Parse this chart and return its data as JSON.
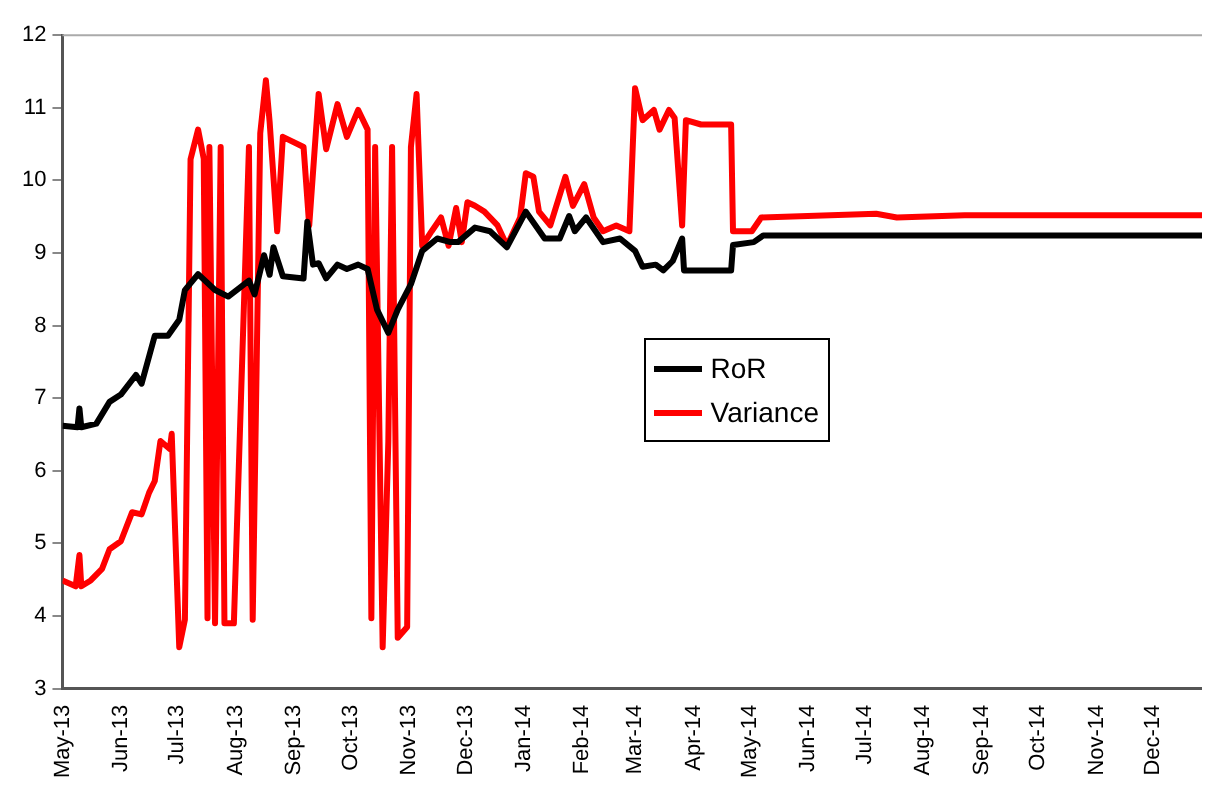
{
  "chart_data": {
    "type": "line",
    "ylim": [
      3,
      12
    ],
    "yticks": [
      3,
      4,
      5,
      6,
      7,
      8,
      9,
      10,
      11,
      12
    ],
    "xlim": [
      "2013-05-01",
      "2014-12-27"
    ],
    "xticks": [
      {
        "value": "2013-05-01",
        "label": "May-13"
      },
      {
        "value": "2013-06-01",
        "label": "Jun-13"
      },
      {
        "value": "2013-07-01",
        "label": "Jul-13"
      },
      {
        "value": "2013-08-01",
        "label": "Aug-13"
      },
      {
        "value": "2013-09-01",
        "label": "Sep-13"
      },
      {
        "value": "2013-10-01",
        "label": "Oct-13"
      },
      {
        "value": "2013-11-01",
        "label": "Nov-13"
      },
      {
        "value": "2013-12-01",
        "label": "Dec-13"
      },
      {
        "value": "2014-01-01",
        "label": "Jan-14"
      },
      {
        "value": "2014-02-01",
        "label": "Feb-14"
      },
      {
        "value": "2014-03-01",
        "label": "Mar-14"
      },
      {
        "value": "2014-04-01",
        "label": "Apr-14"
      },
      {
        "value": "2014-05-01",
        "label": "May-14"
      },
      {
        "value": "2014-06-01",
        "label": "Jun-14"
      },
      {
        "value": "2014-07-01",
        "label": "Jul-14"
      },
      {
        "value": "2014-08-01",
        "label": "Aug-14"
      },
      {
        "value": "2014-09-01",
        "label": "Sep-14"
      },
      {
        "value": "2014-10-01",
        "label": "Oct-14"
      },
      {
        "value": "2014-11-01",
        "label": "Nov-14"
      },
      {
        "value": "2014-12-01",
        "label": "Dec-14"
      }
    ],
    "grid": false,
    "legend": "center",
    "marker": "none",
    "line_style": "solid",
    "series": [
      {
        "name": "RoR",
        "color": "#000000",
        "x": [
          "2013-05-01",
          "2013-05-09",
          "2013-05-10",
          "2013-05-11",
          "2013-05-19",
          "2013-05-26",
          "2013-06-01",
          "2013-06-09",
          "2013-06-12",
          "2013-06-19",
          "2013-06-26",
          "2013-07-02",
          "2013-07-05",
          "2013-07-12",
          "2013-07-21",
          "2013-07-28",
          "2013-08-08",
          "2013-08-11",
          "2013-08-16",
          "2013-08-19",
          "2013-08-21",
          "2013-08-26",
          "2013-09-06",
          "2013-09-08",
          "2013-09-11",
          "2013-09-14",
          "2013-09-18",
          "2013-09-24",
          "2013-09-29",
          "2013-10-05",
          "2013-10-10",
          "2013-10-15",
          "2013-10-21",
          "2013-10-26",
          "2013-11-02",
          "2013-11-08",
          "2013-11-16",
          "2013-11-23",
          "2013-11-27",
          "2013-12-06",
          "2013-12-14",
          "2013-12-23",
          "2014-01-02",
          "2014-01-12",
          "2014-01-20",
          "2014-01-25",
          "2014-01-28",
          "2014-02-03",
          "2014-02-12",
          "2014-02-21",
          "2014-03-01",
          "2014-03-05",
          "2014-03-12",
          "2014-03-16",
          "2014-03-21",
          "2014-03-26",
          "2014-03-27",
          "2014-04-09",
          "2014-04-21",
          "2014-04-22",
          "2014-05-03",
          "2014-05-08",
          "2014-07-01",
          "2014-12-27"
        ],
        "values": [
          6.62,
          6.6,
          6.86,
          6.6,
          6.65,
          6.95,
          7.05,
          7.32,
          7.2,
          7.86,
          7.86,
          8.08,
          8.49,
          8.71,
          8.49,
          8.4,
          8.62,
          8.43,
          8.97,
          8.7,
          9.08,
          8.68,
          8.65,
          9.43,
          8.84,
          8.86,
          8.65,
          8.84,
          8.78,
          8.84,
          8.78,
          8.22,
          7.9,
          8.22,
          8.57,
          9.03,
          9.2,
          9.15,
          9.15,
          9.35,
          9.3,
          9.08,
          9.57,
          9.2,
          9.2,
          9.51,
          9.3,
          9.49,
          9.15,
          9.2,
          9.03,
          8.81,
          8.84,
          8.76,
          8.89,
          9.2,
          8.76,
          8.76,
          8.76,
          9.11,
          9.15,
          9.24,
          9.24,
          9.24
        ]
      },
      {
        "name": "Variance",
        "color": "#ff0000",
        "x": [
          "2013-05-01",
          "2013-05-08",
          "2013-05-10",
          "2013-05-11",
          "2013-05-16",
          "2013-05-22",
          "2013-05-26",
          "2013-06-01",
          "2013-06-07",
          "2013-06-12",
          "2013-06-16",
          "2013-06-19",
          "2013-06-22",
          "2013-06-27",
          "2013-06-28",
          "2013-07-02",
          "2013-07-05",
          "2013-07-08",
          "2013-07-12",
          "2013-07-15",
          "2013-07-17",
          "2013-07-18",
          "2013-07-21",
          "2013-07-24",
          "2013-07-26",
          "2013-07-31",
          "2013-08-08",
          "2013-08-10",
          "2013-08-14",
          "2013-08-17",
          "2013-08-19",
          "2013-08-23",
          "2013-08-26",
          "2013-09-06",
          "2013-09-09",
          "2013-09-14",
          "2013-09-18",
          "2013-09-24",
          "2013-09-29",
          "2013-10-05",
          "2013-10-10",
          "2013-10-12",
          "2013-10-14",
          "2013-10-18",
          "2013-10-21",
          "2013-10-23",
          "2013-10-26",
          "2013-10-31",
          "2013-11-02",
          "2013-11-05",
          "2013-11-08",
          "2013-11-13",
          "2013-11-18",
          "2013-11-22",
          "2013-11-26",
          "2013-11-29",
          "2013-12-02",
          "2013-12-06",
          "2013-12-11",
          "2013-12-18",
          "2013-12-23",
          "2013-12-30",
          "2014-01-02",
          "2014-01-06",
          "2014-01-09",
          "2014-01-15",
          "2014-01-23",
          "2014-01-27",
          "2014-02-02",
          "2014-02-07",
          "2014-02-12",
          "2014-02-19",
          "2014-02-26",
          "2014-03-01",
          "2014-03-05",
          "2014-03-11",
          "2014-03-14",
          "2014-03-19",
          "2014-03-22",
          "2014-03-26",
          "2014-03-28",
          "2014-04-05",
          "2014-04-21",
          "2014-04-22",
          "2014-05-02",
          "2014-05-07",
          "2014-07-07",
          "2014-07-18",
          "2014-08-23",
          "2014-12-27"
        ],
        "values": [
          4.49,
          4.41,
          4.84,
          4.41,
          4.49,
          4.65,
          4.92,
          5.03,
          5.43,
          5.4,
          5.7,
          5.86,
          6.41,
          6.3,
          6.51,
          3.57,
          3.95,
          10.29,
          10.7,
          10.3,
          3.97,
          10.46,
          3.9,
          10.46,
          3.9,
          3.9,
          10.46,
          3.95,
          10.65,
          11.38,
          10.8,
          9.3,
          10.6,
          10.46,
          9.38,
          11.19,
          10.43,
          11.05,
          10.6,
          10.97,
          10.7,
          3.97,
          10.46,
          3.57,
          6.4,
          10.46,
          3.7,
          3.85,
          10.46,
          11.19,
          9.1,
          9.3,
          9.49,
          9.1,
          9.62,
          9.15,
          9.7,
          9.65,
          9.57,
          9.38,
          9.1,
          9.49,
          10.1,
          10.05,
          9.57,
          9.38,
          10.05,
          9.65,
          9.95,
          9.49,
          9.3,
          9.38,
          9.3,
          11.27,
          10.83,
          10.97,
          10.7,
          10.97,
          10.86,
          9.38,
          10.83,
          10.77,
          10.77,
          9.3,
          9.3,
          9.49,
          9.54,
          9.49,
          9.52,
          9.52
        ]
      }
    ]
  }
}
